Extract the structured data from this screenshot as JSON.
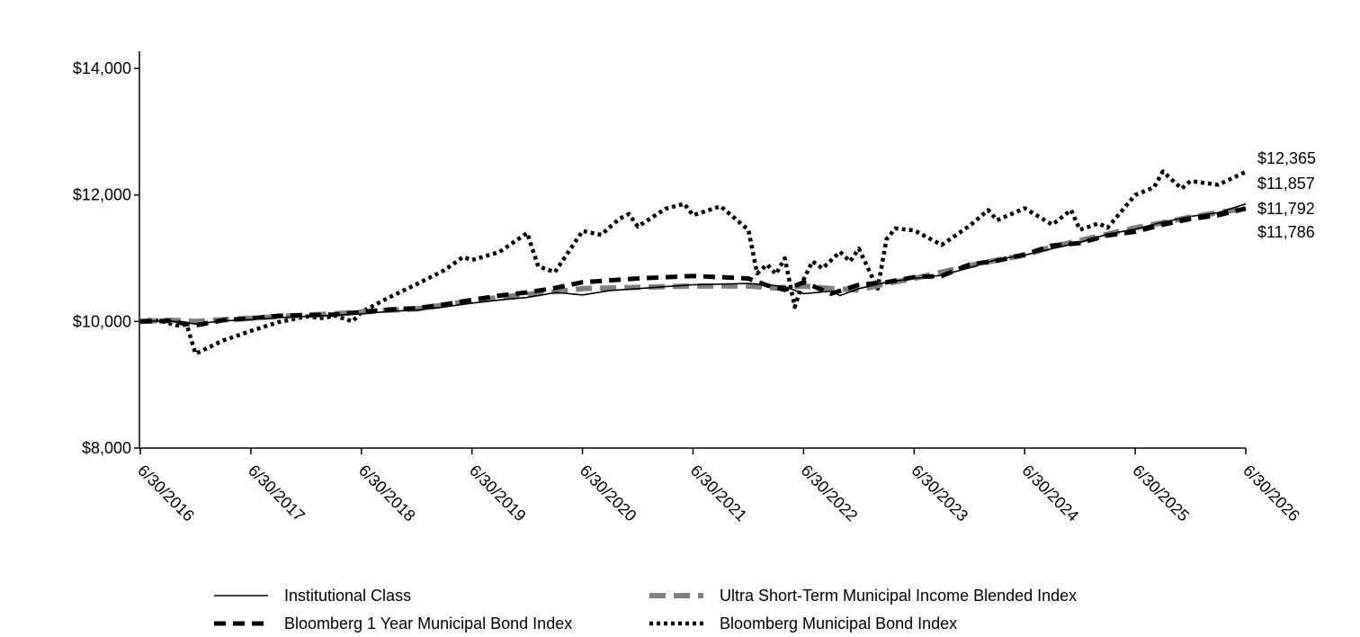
{
  "chart_data": {
    "type": "line",
    "title": "",
    "xlabel": "",
    "ylabel": "",
    "x_ticks": [
      "6/30/2016",
      "6/30/2017",
      "6/30/2018",
      "6/30/2019",
      "6/30/2020",
      "6/30/2021",
      "6/30/2022",
      "6/30/2023",
      "6/30/2024",
      "6/30/2025",
      "6/30/2026"
    ],
    "y_ticks": [
      "$8,000",
      "$10,000",
      "$12,000",
      "$14,000"
    ],
    "ylim": [
      8000,
      14000
    ],
    "xlim": [
      2016.5,
      2026.5
    ],
    "grid": false,
    "legend_position": "bottom",
    "end_labels": [
      "$12,365",
      "$11,857",
      "$11,792",
      "$11,786"
    ],
    "series": [
      {
        "name": "Institutional Class",
        "style": "solid-thin",
        "color": "#000000",
        "x": [
          2016.5,
          2016.75,
          2017.0,
          2017.25,
          2017.5,
          2017.75,
          2018.0,
          2018.25,
          2018.5,
          2018.75,
          2019.0,
          2019.25,
          2019.5,
          2019.75,
          2020.0,
          2020.17,
          2020.25,
          2020.5,
          2020.75,
          2021.0,
          2021.25,
          2021.5,
          2021.75,
          2022.0,
          2022.17,
          2022.33,
          2022.5,
          2022.75,
          2022.83,
          2023.0,
          2023.25,
          2023.5,
          2023.75,
          2024.0,
          2024.25,
          2024.5,
          2024.75,
          2025.0,
          2025.25,
          2025.5,
          2025.75,
          2026.0,
          2026.25,
          2026.5
        ],
        "y": [
          10000,
          10010,
          9960,
          10010,
          10030,
          10060,
          10080,
          10100,
          10120,
          10160,
          10180,
          10230,
          10290,
          10340,
          10380,
          10430,
          10460,
          10420,
          10490,
          10520,
          10550,
          10580,
          10590,
          10600,
          10580,
          10550,
          10440,
          10480,
          10410,
          10520,
          10620,
          10680,
          10730,
          10850,
          10980,
          11050,
          11150,
          11250,
          11380,
          11460,
          11570,
          11660,
          11720,
          11857
        ]
      },
      {
        "name": "Ultra Short-Term Municipal Income Blended Index",
        "style": "dashed-gray",
        "color": "#7f7f7f",
        "x": [
          2016.5,
          2016.75,
          2017.0,
          2017.25,
          2017.5,
          2017.75,
          2018.0,
          2018.25,
          2018.5,
          2018.75,
          2019.0,
          2019.25,
          2019.5,
          2019.75,
          2020.0,
          2020.25,
          2020.5,
          2020.75,
          2021.0,
          2021.25,
          2021.5,
          2021.75,
          2022.0,
          2022.25,
          2022.5,
          2022.75,
          2023.0,
          2023.25,
          2023.5,
          2023.75,
          2024.0,
          2024.25,
          2024.5,
          2024.75,
          2025.0,
          2025.25,
          2025.5,
          2025.75,
          2026.0,
          2026.25,
          2026.5
        ],
        "y": [
          10000,
          10020,
          10000,
          10030,
          10050,
          10080,
          10100,
          10120,
          10150,
          10180,
          10200,
          10260,
          10330,
          10380,
          10430,
          10470,
          10520,
          10530,
          10540,
          10550,
          10560,
          10560,
          10560,
          10530,
          10560,
          10520,
          10500,
          10600,
          10680,
          10780,
          10880,
          10970,
          11050,
          11180,
          11280,
          11380,
          11480,
          11560,
          11650,
          11720,
          11792
        ]
      },
      {
        "name": "Bloomberg 1 Year Municipal Bond Index",
        "style": "dashed-black",
        "color": "#000000",
        "x": [
          2016.5,
          2016.75,
          2017.0,
          2017.25,
          2017.5,
          2017.75,
          2018.0,
          2018.25,
          2018.5,
          2018.75,
          2019.0,
          2019.25,
          2019.5,
          2019.75,
          2020.0,
          2020.25,
          2020.5,
          2020.75,
          2021.0,
          2021.25,
          2021.5,
          2021.75,
          2022.0,
          2022.17,
          2022.33,
          2022.5,
          2022.75,
          2023.0,
          2023.25,
          2023.5,
          2023.75,
          2024.0,
          2024.25,
          2024.5,
          2024.75,
          2025.0,
          2025.25,
          2025.5,
          2025.75,
          2026.0,
          2026.25,
          2026.5
        ],
        "y": [
          10000,
          10010,
          9940,
          10020,
          10050,
          10090,
          10100,
          10110,
          10150,
          10190,
          10210,
          10270,
          10340,
          10410,
          10460,
          10530,
          10620,
          10650,
          10680,
          10700,
          10720,
          10700,
          10680,
          10570,
          10500,
          10620,
          10440,
          10580,
          10620,
          10700,
          10720,
          10900,
          10960,
          11060,
          11200,
          11240,
          11360,
          11420,
          11530,
          11620,
          11680,
          11786
        ]
      },
      {
        "name": "Bloomberg Municipal Bond Index",
        "style": "dotted",
        "color": "#000000",
        "x": [
          2016.5,
          2016.6,
          2016.7,
          2016.83,
          2016.92,
          2017.0,
          2017.25,
          2017.5,
          2017.75,
          2017.92,
          2018.0,
          2018.17,
          2018.25,
          2018.42,
          2018.5,
          2018.75,
          2019.0,
          2019.25,
          2019.42,
          2019.5,
          2019.75,
          2020.0,
          2020.1,
          2020.25,
          2020.5,
          2020.67,
          2020.83,
          2020.92,
          2021.0,
          2021.25,
          2021.42,
          2021.5,
          2021.75,
          2022.0,
          2022.08,
          2022.17,
          2022.25,
          2022.33,
          2022.42,
          2022.5,
          2022.58,
          2022.67,
          2022.83,
          2022.92,
          2023.0,
          2023.17,
          2023.25,
          2023.33,
          2023.5,
          2023.75,
          2024.0,
          2024.17,
          2024.25,
          2024.5,
          2024.75,
          2024.92,
          2025.0,
          2025.17,
          2025.25,
          2025.5,
          2025.67,
          2025.75,
          2025.92,
          2026.0,
          2026.25,
          2026.5
        ],
        "y": [
          10000,
          10030,
          10000,
          9940,
          9950,
          9490,
          9700,
          9850,
          9990,
          10050,
          10080,
          10050,
          10100,
          10000,
          10150,
          10380,
          10590,
          10810,
          11020,
          10970,
          11100,
          11400,
          10870,
          10780,
          11430,
          11370,
          11620,
          11700,
          11500,
          11780,
          11860,
          11680,
          11820,
          11450,
          10760,
          10900,
          10750,
          11000,
          10230,
          10660,
          10950,
          10840,
          11100,
          10950,
          11150,
          10520,
          11300,
          11470,
          11440,
          11210,
          11510,
          11760,
          11600,
          11790,
          11530,
          11760,
          11450,
          11550,
          11480,
          12000,
          12120,
          12370,
          12100,
          12220,
          12160,
          12365
        ]
      }
    ]
  }
}
